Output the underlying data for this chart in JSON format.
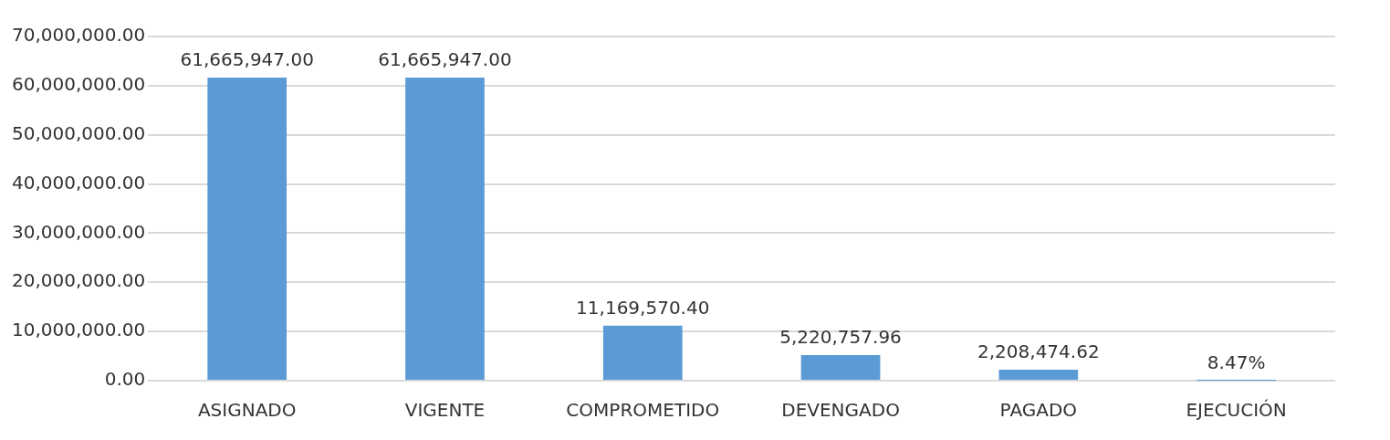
{
  "chart_data": {
    "type": "bar",
    "categories": [
      "ASIGNADO",
      "VIGENTE",
      "COMPROMETIDO",
      "DEVENGADO",
      "PAGADO",
      "EJECUCIÓN"
    ],
    "values": [
      61665947,
      61665947,
      11169570.4,
      5220757.96,
      2208474.62,
      8.47
    ],
    "value_labels": [
      "61,665,947.00",
      "61,665,947.00",
      "11,169,570.40",
      "5,220,757.96",
      "2,208,474.62",
      "8.47%"
    ],
    "color": "#5b9bd5",
    "ylim": [
      0,
      70000000
    ],
    "yticks": [
      {
        "value": 0,
        "label": "0.00"
      },
      {
        "value": 10000000,
        "label": "10,000,000.00"
      },
      {
        "value": 20000000,
        "label": "20,000,000.00"
      },
      {
        "value": 30000000,
        "label": "30,000,000.00"
      },
      {
        "value": 40000000,
        "label": "40,000,000.00"
      },
      {
        "value": 50000000,
        "label": "50,000,000.00"
      },
      {
        "value": 60000000,
        "label": "60,000,000.00"
      },
      {
        "value": 70000000,
        "label": "70,000,000.00"
      }
    ],
    "grid": "y"
  }
}
